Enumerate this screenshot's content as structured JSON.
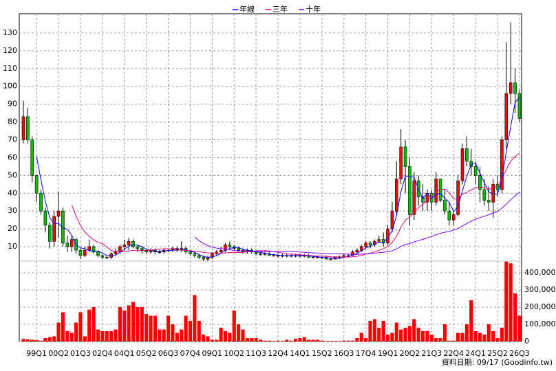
{
  "chart_data": [
    {
      "type": "candlestick",
      "categories": [
        null,
        null,
        null,
        "99Q1",
        null,
        null,
        null,
        null,
        "00Q2",
        null,
        null,
        null,
        null,
        "01Q3",
        null,
        null,
        null,
        null,
        "02Q4",
        null,
        null,
        null,
        null,
        "04Q1",
        null,
        null,
        null,
        null,
        "05Q2",
        null,
        null,
        null,
        null,
        "06Q3",
        null,
        null,
        null,
        null,
        "07Q4",
        null,
        null,
        null,
        null,
        "09Q1",
        null,
        null,
        null,
        null,
        "10Q2",
        null,
        null,
        null,
        null,
        "11Q3",
        null,
        null,
        null,
        null,
        "12Q4",
        null,
        null,
        null,
        null,
        "14Q1",
        null,
        null,
        null,
        null,
        "15Q2",
        null,
        null,
        null,
        null,
        "16Q3",
        null,
        null,
        null,
        null,
        "17Q4",
        null,
        null,
        null,
        null,
        "19Q1",
        null,
        null,
        null,
        null,
        "20Q2",
        null,
        null,
        null,
        null,
        "21Q3",
        null,
        null,
        null,
        null,
        "22Q4",
        null,
        null,
        null,
        null,
        "24Q1",
        null,
        null,
        null,
        null,
        "25Q2",
        null,
        null,
        null,
        null,
        "26Q3"
      ],
      "open": [
        70,
        83,
        70,
        50,
        40,
        30,
        22,
        13,
        27,
        30,
        12,
        10,
        14,
        8,
        5,
        8,
        10,
        7,
        5,
        4,
        4,
        6,
        7,
        10,
        11,
        13,
        10,
        9,
        8,
        7,
        8,
        7,
        7,
        8,
        8,
        9,
        8,
        9,
        7,
        6,
        5,
        4,
        3,
        4,
        6,
        7,
        8,
        11,
        10,
        9,
        8,
        7,
        8,
        7,
        6,
        6,
        6,
        5,
        5,
        5,
        5,
        5,
        5,
        5,
        5,
        5,
        4,
        4,
        4,
        4,
        3,
        3,
        4,
        4,
        5,
        5,
        7,
        8,
        10,
        12,
        11,
        13,
        14,
        12,
        20,
        30,
        48,
        66,
        55,
        28,
        47,
        38,
        35,
        40,
        35,
        48,
        36,
        30,
        25,
        28,
        47,
        65,
        58,
        55,
        50,
        42,
        36,
        35,
        45,
        42,
        70,
        96,
        102,
        96
      ],
      "high": [
        92,
        88,
        72,
        50,
        42,
        32,
        24,
        30,
        41,
        32,
        16,
        16,
        15,
        9,
        10,
        14,
        11,
        8,
        6,
        5,
        7,
        9,
        11,
        14,
        15,
        14,
        11,
        10,
        9,
        9,
        9,
        8,
        9,
        9,
        10,
        10,
        13,
        10,
        8,
        7,
        6,
        5,
        5,
        7,
        8,
        10,
        12,
        13,
        11,
        10,
        9,
        9,
        9,
        8,
        7,
        7,
        7,
        6,
        6,
        6,
        6,
        6,
        6,
        6,
        6,
        6,
        5,
        5,
        5,
        5,
        4,
        4,
        5,
        6,
        6,
        8,
        9,
        11,
        13,
        13,
        14,
        16,
        18,
        22,
        35,
        58,
        76,
        70,
        60,
        52,
        50,
        45,
        42,
        42,
        52,
        48,
        42,
        35,
        30,
        50,
        68,
        72,
        65,
        58,
        55,
        48,
        44,
        48,
        50,
        72,
        125,
        136,
        110,
        98
      ],
      "low": [
        68,
        68,
        46,
        35,
        28,
        18,
        9,
        10,
        15,
        10,
        7,
        7,
        6,
        3,
        4,
        7,
        6,
        4,
        3,
        3,
        3,
        5,
        6,
        8,
        8,
        9,
        7,
        6,
        6,
        6,
        6,
        6,
        6,
        7,
        7,
        7,
        7,
        6,
        5,
        4,
        3,
        2,
        2,
        3,
        5,
        6,
        7,
        9,
        8,
        7,
        6,
        6,
        6,
        5,
        5,
        5,
        5,
        5,
        4,
        4,
        4,
        4,
        4,
        4,
        4,
        4,
        4,
        4,
        3,
        3,
        3,
        3,
        3,
        4,
        4,
        5,
        6,
        7,
        9,
        9,
        10,
        12,
        10,
        11,
        18,
        28,
        45,
        40,
        22,
        25,
        33,
        30,
        30,
        30,
        33,
        35,
        28,
        22,
        22,
        27,
        45,
        55,
        50,
        45,
        35,
        33,
        30,
        26,
        38,
        40,
        65,
        90,
        85,
        80
      ],
      "close": [
        83,
        70,
        50,
        40,
        30,
        22,
        13,
        27,
        30,
        12,
        10,
        14,
        8,
        5,
        8,
        10,
        7,
        5,
        4,
        4,
        6,
        7,
        10,
        11,
        13,
        10,
        9,
        8,
        7,
        8,
        7,
        7,
        8,
        8,
        9,
        8,
        9,
        7,
        6,
        5,
        4,
        3,
        4,
        6,
        7,
        8,
        11,
        10,
        9,
        8,
        7,
        8,
        7,
        6,
        6,
        6,
        5,
        5,
        5,
        5,
        5,
        5,
        5,
        5,
        5,
        4,
        4,
        4,
        4,
        3,
        3,
        4,
        4,
        5,
        5,
        7,
        8,
        10,
        12,
        11,
        13,
        14,
        12,
        20,
        30,
        48,
        66,
        55,
        28,
        47,
        38,
        35,
        40,
        35,
        48,
        36,
        30,
        25,
        28,
        47,
        65,
        58,
        55,
        50,
        42,
        36,
        35,
        45,
        42,
        70,
        96,
        102,
        96,
        82
      ],
      "up_color": "#ff0000",
      "down_color": "#00c000",
      "series": [
        {
          "name": "年線",
          "color": "#0000ff",
          "values": [
            null,
            null,
            null,
            60.8,
            47.5,
            35.5,
            26.3,
            23,
            23,
            20.5,
            19.8,
            16.5,
            11,
            9.3,
            8.8,
            7.8,
            7.5,
            7.5,
            6.5,
            5,
            4.8,
            5.3,
            6.8,
            8.5,
            10.3,
            11,
            10.8,
            10,
            8.5,
            8,
            7.5,
            7.3,
            7.5,
            7.8,
            8,
            8.3,
            8.5,
            8.3,
            7.5,
            6.8,
            5.5,
            4.5,
            4,
            4.3,
            5,
            6.3,
            8,
            9,
            9.5,
            9.5,
            8.5,
            8,
            7.5,
            7,
            6.8,
            6.3,
            5.8,
            5.5,
            5.3,
            5,
            5,
            5,
            5,
            5,
            5,
            4.8,
            4.5,
            4.3,
            4,
            3.8,
            3.5,
            3.5,
            3.5,
            4,
            4.5,
            5.3,
            6.3,
            7.5,
            9.3,
            10.3,
            11.5,
            12.5,
            12.5,
            14.8,
            19,
            27.5,
            41,
            49.8,
            49.3,
            49,
            42,
            37,
            40,
            37,
            39.5,
            39.8,
            37.3,
            34.8,
            29.8,
            32.5,
            41.3,
            49.5,
            56.3,
            57,
            51.3,
            45.8,
            40.8,
            39.5,
            39.5,
            48,
            63.3,
            77.5,
            91,
            94
          ]
        },
        {
          "name": "三年",
          "color": "#e0007a",
          "values": [
            null,
            null,
            null,
            null,
            null,
            null,
            null,
            null,
            null,
            null,
            null,
            33.4,
            27.2,
            21.8,
            18.3,
            15.8,
            13.8,
            12.4,
            11.7,
            9.8,
            7.8,
            7.3,
            7.3,
            7.1,
            7.5,
            7.9,
            8,
            7.8,
            7.8,
            8.1,
            8.3,
            8.6,
            8.8,
            8.8,
            8.8,
            8.5,
            8.2,
            7.9,
            7.7,
            7.4,
            7.2,
            6.8,
            6.5,
            6.4,
            6.3,
            6.3,
            6.5,
            6.7,
            6.7,
            6.8,
            6.8,
            7.1,
            7.3,
            7.6,
            7.8,
            7.8,
            7.6,
            7.3,
            6.8,
            6.4,
            6.1,
            5.8,
            5.7,
            5.4,
            5.3,
            5.1,
            4.9,
            4.8,
            4.7,
            4.5,
            4.3,
            4.3,
            4.2,
            4.2,
            4.2,
            4.3,
            4.6,
            5.1,
            5.8,
            6.3,
            7.1,
            8,
            8.8,
            10.1,
            12.3,
            15.8,
            20.9,
            24.9,
            26.6,
            29.7,
            31.8,
            33.8,
            36.1,
            37.8,
            40.8,
            42.2,
            42.2,
            40.3,
            37.1,
            36.4,
            39.5,
            40.4,
            41.8,
            43.1,
            43.3,
            43.3,
            42.3,
            43,
            44,
            47.8,
            53.4,
            58,
            60.6,
            62.6
          ]
        },
        {
          "name": "十年",
          "color": "#8000ff",
          "values": [
            null,
            null,
            null,
            null,
            null,
            null,
            null,
            null,
            null,
            null,
            null,
            null,
            null,
            null,
            null,
            null,
            null,
            null,
            null,
            null,
            null,
            null,
            null,
            null,
            null,
            null,
            null,
            null,
            null,
            null,
            null,
            null,
            null,
            null,
            null,
            null,
            null,
            null,
            null,
            15.4,
            13.4,
            11.7,
            10.6,
            9.7,
            9.2,
            8.8,
            8.8,
            8.3,
            7.8,
            7.7,
            7.6,
            7.5,
            7.5,
            7.5,
            7.4,
            7.3,
            7.3,
            7.3,
            7.3,
            7.3,
            7.3,
            7.3,
            7.1,
            7,
            6.8,
            6.6,
            6.5,
            6.4,
            6.3,
            6.2,
            6.1,
            6,
            5.9,
            5.9,
            5.8,
            5.7,
            5.7,
            5.8,
            5.9,
            6.1,
            6.3,
            6.6,
            6.8,
            7.1,
            7.7,
            8.7,
            10.1,
            11.2,
            11.7,
            12.7,
            13.4,
            14.1,
            14.9,
            15.7,
            16.7,
            17.5,
            18.1,
            18.6,
            19.2,
            20.2,
            21.7,
            23,
            24.3,
            25.4,
            26.3,
            27.1,
            27.9,
            28.9,
            29.9,
            31.6,
            33.9,
            36.3,
            38.6,
            40.6
          ]
        }
      ],
      "ylim": [
        1.9,
        140.8
      ],
      "yticks": [
        10,
        20,
        30,
        40,
        50,
        60,
        70,
        80,
        90,
        100,
        110,
        120,
        130
      ],
      "grid": true,
      "source": "資料日期: 09/17  (Goodinfo.tw)"
    },
    {
      "type": "bar",
      "color": "#ff0000",
      "values": [
        15000,
        12000,
        10000,
        8000,
        5000,
        20000,
        25000,
        30000,
        110000,
        170000,
        60000,
        50000,
        110000,
        170000,
        30000,
        185000,
        200000,
        70000,
        60000,
        60000,
        60000,
        70000,
        200000,
        180000,
        210000,
        230000,
        200000,
        200000,
        160000,
        150000,
        150000,
        70000,
        70000,
        150000,
        100000,
        50000,
        70000,
        150000,
        120000,
        270000,
        120000,
        40000,
        30000,
        10000,
        10000,
        80000,
        60000,
        50000,
        180000,
        100000,
        70000,
        20000,
        20000,
        20000,
        10000,
        5000,
        5000,
        3000,
        5000,
        3000,
        10000,
        5000,
        15000,
        20000,
        25000,
        10000,
        10000,
        10000,
        5000,
        3000,
        3000,
        3000,
        3000,
        5000,
        5000,
        5000,
        20000,
        50000,
        20000,
        120000,
        130000,
        80000,
        120000,
        40000,
        50000,
        110000,
        70000,
        80000,
        90000,
        130000,
        80000,
        60000,
        60000,
        40000,
        20000,
        20000,
        100000,
        5000,
        5000,
        50000,
        50000,
        100000,
        240000,
        60000,
        50000,
        40000,
        100000,
        60000,
        20000,
        80000,
        465000,
        455000,
        280000,
        150000
      ],
      "ylim": [
        0,
        468000
      ],
      "yticks": [
        0,
        {
          "value": 100000,
          "label": "100,000"
        },
        {
          "value": 200000,
          "label": "200,000"
        },
        {
          "value": 300000,
          "label": "300,000"
        },
        {
          "value": 400000,
          "label": "400,000"
        }
      ]
    }
  ]
}
